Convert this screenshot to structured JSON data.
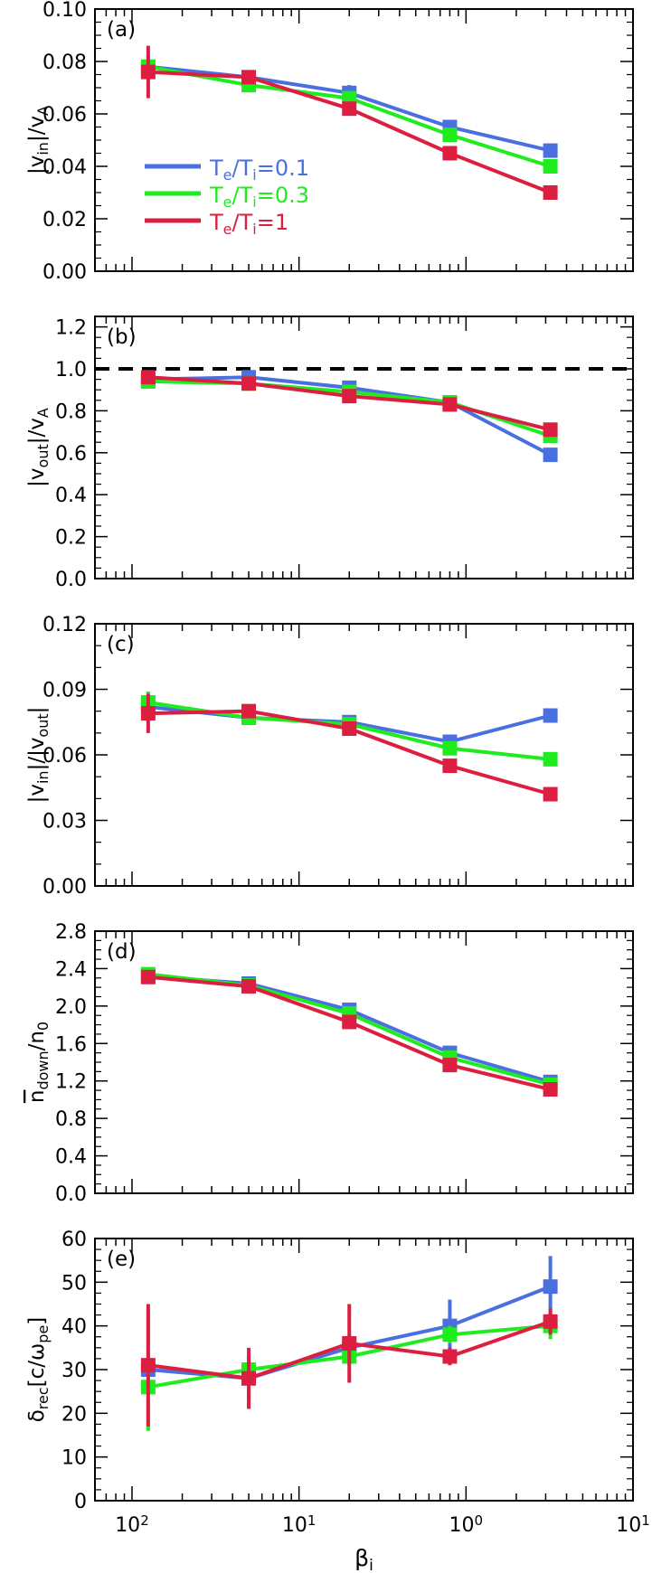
{
  "chart_data": {
    "type": "line",
    "x_axis": {
      "scale": "log",
      "label": "β",
      "label_sub": "i",
      "tick_labels": [
        {
          "value": 0.01,
          "base": "10",
          "exp": "2"
        },
        {
          "value": 0.1,
          "base": "10",
          "exp": "1"
        },
        {
          "value": 1,
          "base": "10",
          "exp": "0"
        },
        {
          "value": 10,
          "base": "10",
          "exp": "1"
        }
      ],
      "range": [
        0.006,
        10
      ]
    },
    "x": [
      0.0125,
      0.05,
      0.2,
      0.8,
      3.2
    ],
    "colors": {
      "te_ti_0_1": "#4a70e0",
      "te_ti_0_3": "#1fec1f",
      "te_ti_1": "#dc1f40"
    },
    "legend": {
      "placement": "panel-a-left",
      "entries": [
        {
          "key": "te_ti_0_1",
          "a": "T",
          "a_sub": "e",
          "mid": "/T",
          "b_sub": "i",
          "tail": "=0.1"
        },
        {
          "key": "te_ti_0_3",
          "a": "T",
          "a_sub": "e",
          "mid": "/T",
          "b_sub": "i",
          "tail": "=0.3"
        },
        {
          "key": "te_ti_1",
          "a": "T",
          "a_sub": "e",
          "mid": "/T",
          "b_sub": "i",
          "tail": "=1"
        }
      ]
    },
    "panels": [
      {
        "tag": "(a)",
        "ylabel": {
          "parts": [
            [
              "|v",
              ""
            ],
            [
              "in",
              "sub"
            ],
            [
              "|/v",
              ""
            ],
            [
              "A",
              "sub"
            ]
          ]
        },
        "ylim": [
          0,
          0.1
        ],
        "yticks": [
          0,
          0.02,
          0.04,
          0.06,
          0.08,
          0.1
        ],
        "ytick_labels": [
          "0.00",
          "0.02",
          "0.04",
          "0.06",
          "0.08",
          "0.10"
        ],
        "reference_line": null,
        "series": [
          {
            "key": "te_ti_0_1",
            "values": [
              0.078,
              0.074,
              0.068,
              0.055,
              0.046
            ],
            "errors": [
              0.004,
              0.002,
              0.003,
              0.002,
              0.002
            ]
          },
          {
            "key": "te_ti_0_3",
            "values": [
              0.078,
              0.071,
              0.066,
              0.052,
              0.04
            ],
            "errors": [
              0.004,
              0.002,
              0.002,
              0.002,
              0.002
            ]
          },
          {
            "key": "te_ti_1",
            "values": [
              0.076,
              0.074,
              0.062,
              0.045,
              0.03
            ],
            "errors": [
              0.01,
              0.002,
              0.002,
              0.002,
              0.002
            ]
          }
        ]
      },
      {
        "tag": "(b)",
        "ylabel": {
          "parts": [
            [
              "|v",
              ""
            ],
            [
              "out",
              "sub"
            ],
            [
              "|/v",
              ""
            ],
            [
              "A",
              "sub"
            ]
          ]
        },
        "ylim": [
          0,
          1.25
        ],
        "yticks": [
          0,
          0.2,
          0.4,
          0.6,
          0.8,
          1.0,
          1.2
        ],
        "ytick_labels": [
          "0.0",
          "0.2",
          "0.4",
          "0.6",
          "0.8",
          "1.0",
          "1.2"
        ],
        "reference_line": 1.0,
        "series": [
          {
            "key": "te_ti_0_1",
            "values": [
              0.95,
              0.96,
              0.91,
              0.84,
              0.59
            ],
            "errors": [
              0.02,
              0.02,
              0.02,
              0.02,
              0.02
            ]
          },
          {
            "key": "te_ti_0_3",
            "values": [
              0.94,
              0.93,
              0.89,
              0.84,
              0.68
            ],
            "errors": [
              0.02,
              0.02,
              0.02,
              0.02,
              0.02
            ]
          },
          {
            "key": "te_ti_1",
            "values": [
              0.96,
              0.93,
              0.87,
              0.83,
              0.71
            ],
            "errors": [
              0.03,
              0.02,
              0.02,
              0.02,
              0.02
            ]
          }
        ]
      },
      {
        "tag": "(c)",
        "ylabel": {
          "parts": [
            [
              "|v",
              ""
            ],
            [
              "in",
              "sub"
            ],
            [
              "|/|v",
              ""
            ],
            [
              "out",
              "sub"
            ],
            [
              "|",
              ""
            ]
          ]
        },
        "ylim": [
          0,
          0.12
        ],
        "yticks": [
          0,
          0.03,
          0.06,
          0.09,
          0.12
        ],
        "ytick_labels": [
          "0.00",
          "0.03",
          "0.06",
          "0.09",
          "0.12"
        ],
        "reference_line": null,
        "series": [
          {
            "key": "te_ti_0_1",
            "values": [
              0.082,
              0.077,
              0.075,
              0.066,
              0.078
            ],
            "errors": [
              0.004,
              0.002,
              0.003,
              0.002,
              0.002
            ]
          },
          {
            "key": "te_ti_0_3",
            "values": [
              0.084,
              0.077,
              0.074,
              0.063,
              0.058
            ],
            "errors": [
              0.005,
              0.002,
              0.002,
              0.002,
              0.002
            ]
          },
          {
            "key": "te_ti_1",
            "values": [
              0.079,
              0.08,
              0.072,
              0.055,
              0.042
            ],
            "errors": [
              0.009,
              0.002,
              0.002,
              0.002,
              0.002
            ]
          }
        ]
      },
      {
        "tag": "(d)",
        "ylabel": {
          "parts": [
            [
              "n",
              "over"
            ],
            [
              "down",
              "sub"
            ],
            [
              "/n",
              ""
            ],
            [
              "0",
              "sub"
            ]
          ]
        },
        "ylim": [
          0,
          2.8
        ],
        "yticks": [
          0,
          0.4,
          0.8,
          1.2,
          1.6,
          2.0,
          2.4,
          2.8
        ],
        "ytick_labels": [
          "0.0",
          "0.4",
          "0.8",
          "1.2",
          "1.6",
          "2.0",
          "2.4",
          "2.8"
        ],
        "reference_line": null,
        "series": [
          {
            "key": "te_ti_0_1",
            "values": [
              2.32,
              2.24,
              1.96,
              1.5,
              1.19
            ],
            "errors": [
              0.04,
              0.03,
              0.03,
              0.03,
              0.03
            ]
          },
          {
            "key": "te_ti_0_3",
            "values": [
              2.34,
              2.22,
              1.92,
              1.45,
              1.16
            ],
            "errors": [
              0.04,
              0.03,
              0.03,
              0.03,
              0.03
            ]
          },
          {
            "key": "te_ti_1",
            "values": [
              2.31,
              2.21,
              1.83,
              1.37,
              1.11
            ],
            "errors": [
              0.04,
              0.03,
              0.03,
              0.03,
              0.03
            ]
          }
        ]
      },
      {
        "tag": "(e)",
        "ylabel": {
          "parts": [
            [
              "δ",
              ""
            ],
            [
              "rec",
              "sub"
            ],
            [
              "[c/ω",
              ""
            ],
            [
              "pe",
              "sub"
            ],
            [
              "]",
              ""
            ]
          ]
        },
        "ylim": [
          0,
          60
        ],
        "yticks": [
          0,
          10,
          20,
          30,
          40,
          50,
          60
        ],
        "ytick_labels": [
          "0",
          "10",
          "20",
          "30",
          "40",
          "50",
          "60"
        ],
        "reference_line": null,
        "series": [
          {
            "key": "te_ti_0_1",
            "values": [
              30,
              28,
              35,
              40,
              49
            ],
            "errors": [
              14,
              5,
              3,
              6,
              7
            ]
          },
          {
            "key": "te_ti_0_3",
            "values": [
              26,
              30,
              33,
              38,
              40
            ],
            "errors": [
              10,
              3,
              2,
              2,
              3
            ]
          },
          {
            "key": "te_ti_1",
            "values": [
              31,
              28,
              36,
              33,
              41
            ],
            "errors": [
              14,
              7,
              9,
              2,
              3
            ]
          }
        ]
      }
    ]
  }
}
